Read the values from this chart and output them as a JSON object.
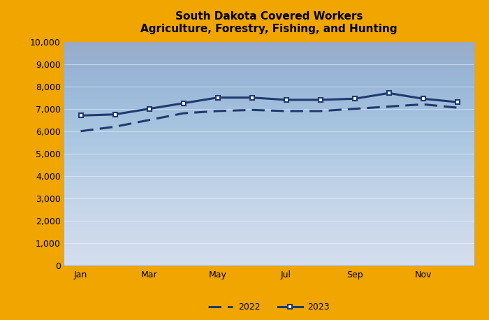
{
  "title_line1": "South Dakota Covered Workers",
  "title_line2": "Agriculture, Forestry, Fishing, and Hunting",
  "x_tick_labels": [
    "Jan",
    "Mar",
    "May",
    "Jul",
    "Sep",
    "Nov"
  ],
  "x_tick_positions": [
    0,
    2,
    4,
    6,
    8,
    10
  ],
  "data_2022": [
    6000,
    6200,
    6500,
    6800,
    6900,
    6950,
    6900,
    6900,
    7000,
    7100,
    7200,
    7050
  ],
  "data_2023": [
    6700,
    6750,
    7000,
    7250,
    7500,
    7500,
    7400,
    7400,
    7450,
    7700,
    7450,
    7300
  ],
  "ylim": [
    0,
    10000
  ],
  "yticks": [
    0,
    1000,
    2000,
    3000,
    4000,
    5000,
    6000,
    7000,
    8000,
    9000,
    10000
  ],
  "line_color": "#1f3a6e",
  "background_outer": "#f0a500",
  "background_inner_top": "#cdd5e8",
  "background_inner_bottom": "#dce5f0",
  "legend_labels": [
    "2022",
    "2023"
  ],
  "title_fontsize": 11,
  "tick_fontsize": 9,
  "legend_fontsize": 9
}
